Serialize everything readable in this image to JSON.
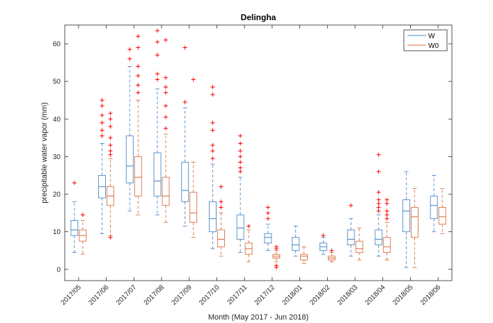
{
  "chart_data": {
    "type": "boxplot",
    "title": "Delingha",
    "xlabel": "Month (May 2017 - Jun 2018)",
    "ylabel": "precipitable water vapor (mm)",
    "ylim": [
      -3,
      65
    ],
    "yticks": [
      0,
      10,
      20,
      30,
      40,
      50,
      60
    ],
    "categories": [
      "2017/05",
      "2017/06",
      "2017/07",
      "2017/08",
      "2017/09",
      "2017/10",
      "2017/11",
      "2017/12",
      "2018/01",
      "2018/02",
      "2018/03",
      "2018/04",
      "2018/05",
      "2018/06"
    ],
    "legend": {
      "position": "top-right"
    },
    "colors": {
      "W": "#4a89c9",
      "W0": "#d9703e",
      "outlier": "#ff0000"
    },
    "series": [
      {
        "name": "W",
        "boxes": [
          {
            "lw": 4.5,
            "q1": 9,
            "med": 10.5,
            "q3": 13,
            "uw": 18,
            "outliers": [
              23
            ]
          },
          {
            "lw": 9.5,
            "q1": 19,
            "med": 22,
            "q3": 25,
            "uw": 33.5,
            "outliers": [
              35.5,
              37,
              39,
              41,
              43.5,
              45
            ]
          },
          {
            "lw": 15.5,
            "q1": 23,
            "med": 27.5,
            "q3": 35.5,
            "uw": 54,
            "outliers": [
              56,
              58.5
            ]
          },
          {
            "lw": 14.5,
            "q1": 19.5,
            "med": 23.5,
            "q3": 31,
            "uw": 48,
            "outliers": [
              50.5,
              52,
              57,
              60.5,
              63.5
            ]
          },
          {
            "lw": 11.5,
            "q1": 18,
            "med": 21,
            "q3": 28.5,
            "uw": 43,
            "outliers": [
              44.5,
              59
            ]
          },
          {
            "lw": 5.5,
            "q1": 10,
            "med": 13.5,
            "q3": 18,
            "uw": 28,
            "outliers": [
              29.5,
              31.5,
              33,
              37,
              39,
              46.5,
              48.5
            ]
          },
          {
            "lw": 4.5,
            "q1": 8,
            "med": 11,
            "q3": 14.5,
            "uw": 24.5,
            "outliers": [
              26,
              27,
              28.5,
              30,
              31.5,
              33.5,
              35.5
            ]
          },
          {
            "lw": 5,
            "q1": 7,
            "med": 8.5,
            "q3": 9.5,
            "uw": 12,
            "outliers": [
              13.5,
              15,
              16.5
            ]
          },
          {
            "lw": 3.5,
            "q1": 5,
            "med": 6.5,
            "q3": 8.5,
            "uw": 11.5,
            "outliers": []
          },
          {
            "lw": 4,
            "q1": 5,
            "med": 6,
            "q3": 7,
            "uw": 8.5,
            "outliers": [
              9
            ]
          },
          {
            "lw": 3.5,
            "q1": 6.5,
            "med": 8,
            "q3": 10.5,
            "uw": 13.5,
            "outliers": [
              17
            ]
          },
          {
            "lw": 3.5,
            "q1": 6.5,
            "med": 8,
            "q3": 10.5,
            "uw": 14.5,
            "outliers": [
              15.5,
              16.5,
              17.5,
              18.5,
              20.5,
              26,
              30.5
            ]
          },
          {
            "lw": 0.5,
            "q1": 10,
            "med": 15.5,
            "q3": 18.5,
            "uw": 26,
            "outliers": []
          },
          {
            "lw": 10,
            "q1": 13.5,
            "med": 17,
            "q3": 19.5,
            "uw": 25,
            "outliers": []
          }
        ]
      },
      {
        "name": "W0",
        "boxes": [
          {
            "lw": 4,
            "q1": 7.5,
            "med": 9,
            "q3": 10.5,
            "uw": 13,
            "outliers": [
              14.5
            ]
          },
          {
            "lw": 9,
            "q1": 17,
            "med": 19.5,
            "q3": 22,
            "uw": 29.5,
            "outliers": [
              8.5,
              30.5,
              31.5,
              33,
              35,
              38,
              40,
              41.5
            ]
          },
          {
            "lw": 14.5,
            "q1": 19.5,
            "med": 24.5,
            "q3": 30,
            "uw": 45,
            "outliers": [
              47,
              49,
              51.5,
              54,
              59,
              62
            ]
          },
          {
            "lw": 12.5,
            "q1": 17,
            "med": 19.5,
            "q3": 24.5,
            "uw": 36,
            "outliers": [
              37.5,
              40.5,
              43.5,
              47,
              48.5,
              51,
              61
            ]
          },
          {
            "lw": 8.5,
            "q1": 12.5,
            "med": 15,
            "q3": 20.5,
            "uw": 28.5,
            "outliers": [
              50.5
            ]
          },
          {
            "lw": 3.5,
            "q1": 6,
            "med": 8,
            "q3": 10.5,
            "uw": 15,
            "outliers": [
              16.5,
              18,
              22
            ]
          },
          {
            "lw": 2,
            "q1": 4,
            "med": 5.5,
            "q3": 7,
            "uw": 10.5,
            "outliers": [
              11.5
            ]
          },
          {
            "lw": 2,
            "q1": 3,
            "med": 3.5,
            "q3": 4,
            "uw": 5,
            "outliers": [
              0.5,
              1,
              5.5,
              6
            ]
          },
          {
            "lw": 1.5,
            "q1": 2.5,
            "med": 3.5,
            "q3": 4,
            "uw": 6,
            "outliers": []
          },
          {
            "lw": 2,
            "q1": 2.5,
            "med": 3,
            "q3": 3.5,
            "uw": 4.5,
            "outliers": [
              5
            ]
          },
          {
            "lw": 2.5,
            "q1": 4.5,
            "med": 5.5,
            "q3": 7.5,
            "uw": 11,
            "outliers": []
          },
          {
            "lw": 2.5,
            "q1": 4.5,
            "med": 6,
            "q3": 8.5,
            "uw": 12.5,
            "outliers": [
              13.5,
              14.5,
              15.5,
              17.5,
              18.5
            ]
          },
          {
            "lw": 0.5,
            "q1": 8.5,
            "med": 14,
            "q3": 16.5,
            "uw": 21.5,
            "outliers": []
          },
          {
            "lw": 9.5,
            "q1": 12,
            "med": 14,
            "q3": 16.5,
            "uw": 21.5,
            "outliers": []
          }
        ]
      }
    ]
  }
}
